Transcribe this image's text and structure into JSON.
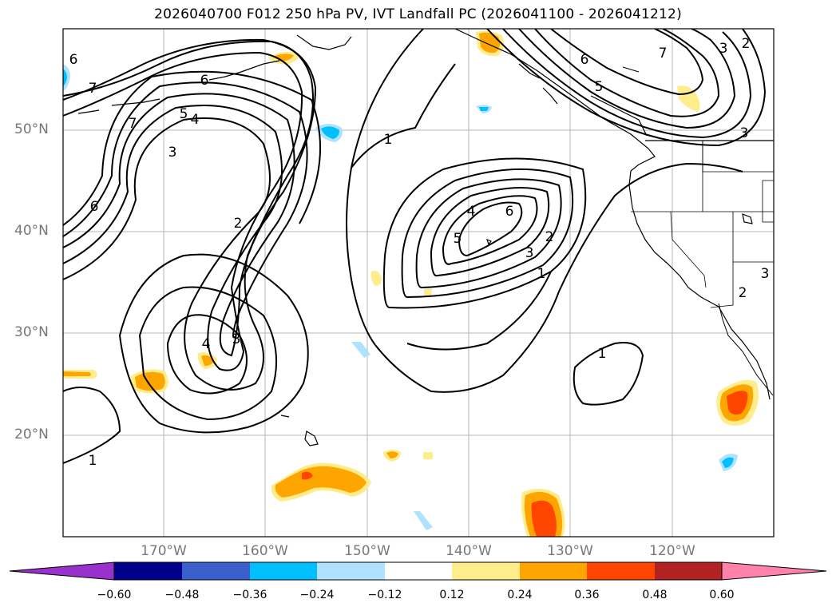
{
  "title": "2026040700 F012 250 hPa PV, IVT Landfall PC (2026041100 - 2026041212)",
  "lat_labels": [
    "50°N",
    "40°N",
    "30°N",
    "20°N"
  ],
  "lon_labels": [
    "170°W",
    "160°W",
    "150°W",
    "140°W",
    "130°W",
    "120°W"
  ],
  "colorbar": {
    "ticks": [
      "−0.60",
      "−0.48",
      "−0.36",
      "−0.24",
      "−0.12",
      "0.12",
      "0.24",
      "0.36",
      "0.48",
      "0.60"
    ],
    "colors": [
      "#9932cc",
      "#00008b",
      "#3a5fcd",
      "#00bfff",
      "#b0e2ff",
      "#ffffff",
      "#ffec8b",
      "#ffa500",
      "#ff4500",
      "#b22222",
      "#ff82ab"
    ]
  },
  "contour_labels": [
    "6",
    "7",
    "7",
    "5",
    "4",
    "6",
    "3",
    "6",
    "2",
    "4",
    "3",
    "1",
    "4",
    "6",
    "5",
    "3",
    "2",
    "1",
    "1",
    "1",
    "6",
    "5",
    "7",
    "3",
    "2",
    "3",
    "2",
    "3"
  ]
}
